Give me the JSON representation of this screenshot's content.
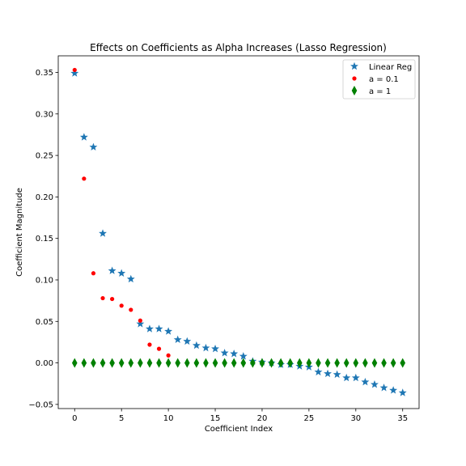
{
  "chart_data": {
    "type": "scatter",
    "title": "Effects on Coefficients as Alpha Increases (Lasso Regression)",
    "xlabel": "Coefficient Index",
    "ylabel": "Coefficient Magnitude",
    "xlim": [
      -1.75,
      36.75
    ],
    "ylim": [
      -0.055,
      0.37
    ],
    "xticks": [
      0,
      5,
      10,
      15,
      20,
      25,
      30,
      35
    ],
    "yticks": [
      -0.05,
      0.0,
      0.05,
      0.1,
      0.15,
      0.2,
      0.25,
      0.3,
      0.35
    ],
    "ytick_labels": [
      "−0.05",
      "0.00",
      "0.05",
      "0.10",
      "0.15",
      "0.20",
      "0.25",
      "0.30",
      "0.35"
    ],
    "xtick_labels": [
      "0",
      "5",
      "10",
      "15",
      "20",
      "25",
      "30",
      "35"
    ],
    "grid": false,
    "legend_position": "top-right",
    "series": [
      {
        "name": "Linear Reg",
        "marker": "star",
        "color": "#1f77b4",
        "x": [
          0,
          1,
          2,
          3,
          4,
          5,
          6,
          7,
          8,
          9,
          10,
          11,
          12,
          13,
          14,
          15,
          16,
          17,
          18,
          19,
          20,
          21,
          22,
          23,
          24,
          25,
          26,
          27,
          28,
          29,
          30,
          31,
          32,
          33,
          34,
          35
        ],
        "values": [
          0.349,
          0.272,
          0.26,
          0.156,
          0.111,
          0.108,
          0.101,
          0.047,
          0.041,
          0.041,
          0.038,
          0.028,
          0.026,
          0.021,
          0.018,
          0.017,
          0.012,
          0.011,
          0.008,
          0.002,
          0.001,
          0.0,
          -0.002,
          -0.002,
          -0.004,
          -0.005,
          -0.011,
          -0.013,
          -0.014,
          -0.018,
          -0.018,
          -0.023,
          -0.026,
          -0.03,
          -0.033,
          -0.036
        ]
      },
      {
        "name": "a = 0.1",
        "marker": "circle",
        "color": "#ff0000",
        "x": [
          0,
          1,
          2,
          3,
          4,
          5,
          6,
          7,
          8,
          9,
          10,
          11,
          12,
          13,
          14,
          15,
          16,
          17,
          18,
          19,
          20,
          21,
          22,
          23,
          24,
          25,
          26,
          27,
          28,
          29,
          30,
          31,
          32,
          33,
          34,
          35
        ],
        "values": [
          0.353,
          0.222,
          0.108,
          0.078,
          0.077,
          0.069,
          0.064,
          0.051,
          0.022,
          0.017,
          0.009,
          0,
          0,
          0,
          0,
          0,
          0,
          0,
          0,
          0,
          0,
          0,
          0,
          0,
          0,
          0,
          0,
          0,
          0,
          0,
          0,
          0,
          0,
          0,
          0,
          0
        ]
      },
      {
        "name": "a = 1",
        "marker": "thin_diamond",
        "color": "#008000",
        "x": [
          0,
          1,
          2,
          3,
          4,
          5,
          6,
          7,
          8,
          9,
          10,
          11,
          12,
          13,
          14,
          15,
          16,
          17,
          18,
          19,
          20,
          21,
          22,
          23,
          24,
          25,
          26,
          27,
          28,
          29,
          30,
          31,
          32,
          33,
          34,
          35
        ],
        "values": [
          0,
          0,
          0,
          0,
          0,
          0,
          0,
          0,
          0,
          0,
          0,
          0,
          0,
          0,
          0,
          0,
          0,
          0,
          0,
          0,
          0,
          0,
          0,
          0,
          0,
          0,
          0,
          0,
          0,
          0,
          0,
          0,
          0,
          0,
          0,
          0
        ]
      }
    ]
  }
}
